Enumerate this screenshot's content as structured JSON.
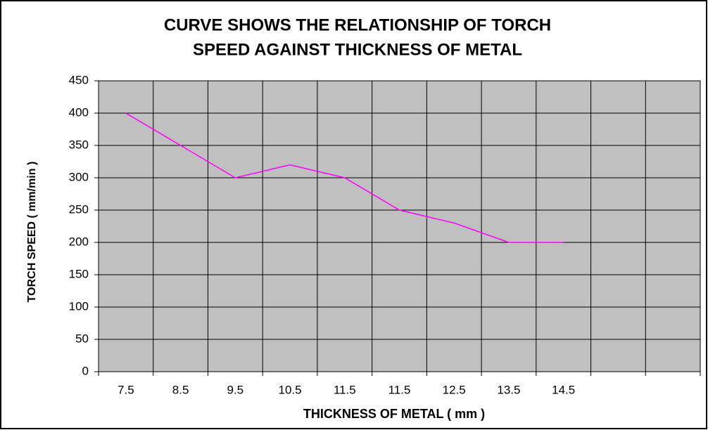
{
  "chart_data": {
    "type": "line",
    "title": [
      "CURVE SHOWS THE RELATIONSHIP OF TORCH",
      "SPEED AGAINST THICKNESS OF METAL"
    ],
    "x_label": "THICKNESS OF METAL ( mm )",
    "y_label": "TORCH SPEED ( mm/min )",
    "categories": [
      "7.5",
      "8.5",
      "9.5",
      "10.5",
      "11.5",
      "11.5",
      "12.5",
      "13.5",
      "14.5",
      null,
      null
    ],
    "values": [
      400,
      350,
      300,
      320,
      300,
      250,
      230,
      200,
      200,
      null,
      null
    ],
    "color": "#ff00ff",
    "ylim": [
      0,
      450
    ],
    "yticks": [
      0,
      50,
      100,
      150,
      200,
      250,
      300,
      350,
      400,
      450
    ],
    "grid": true
  }
}
